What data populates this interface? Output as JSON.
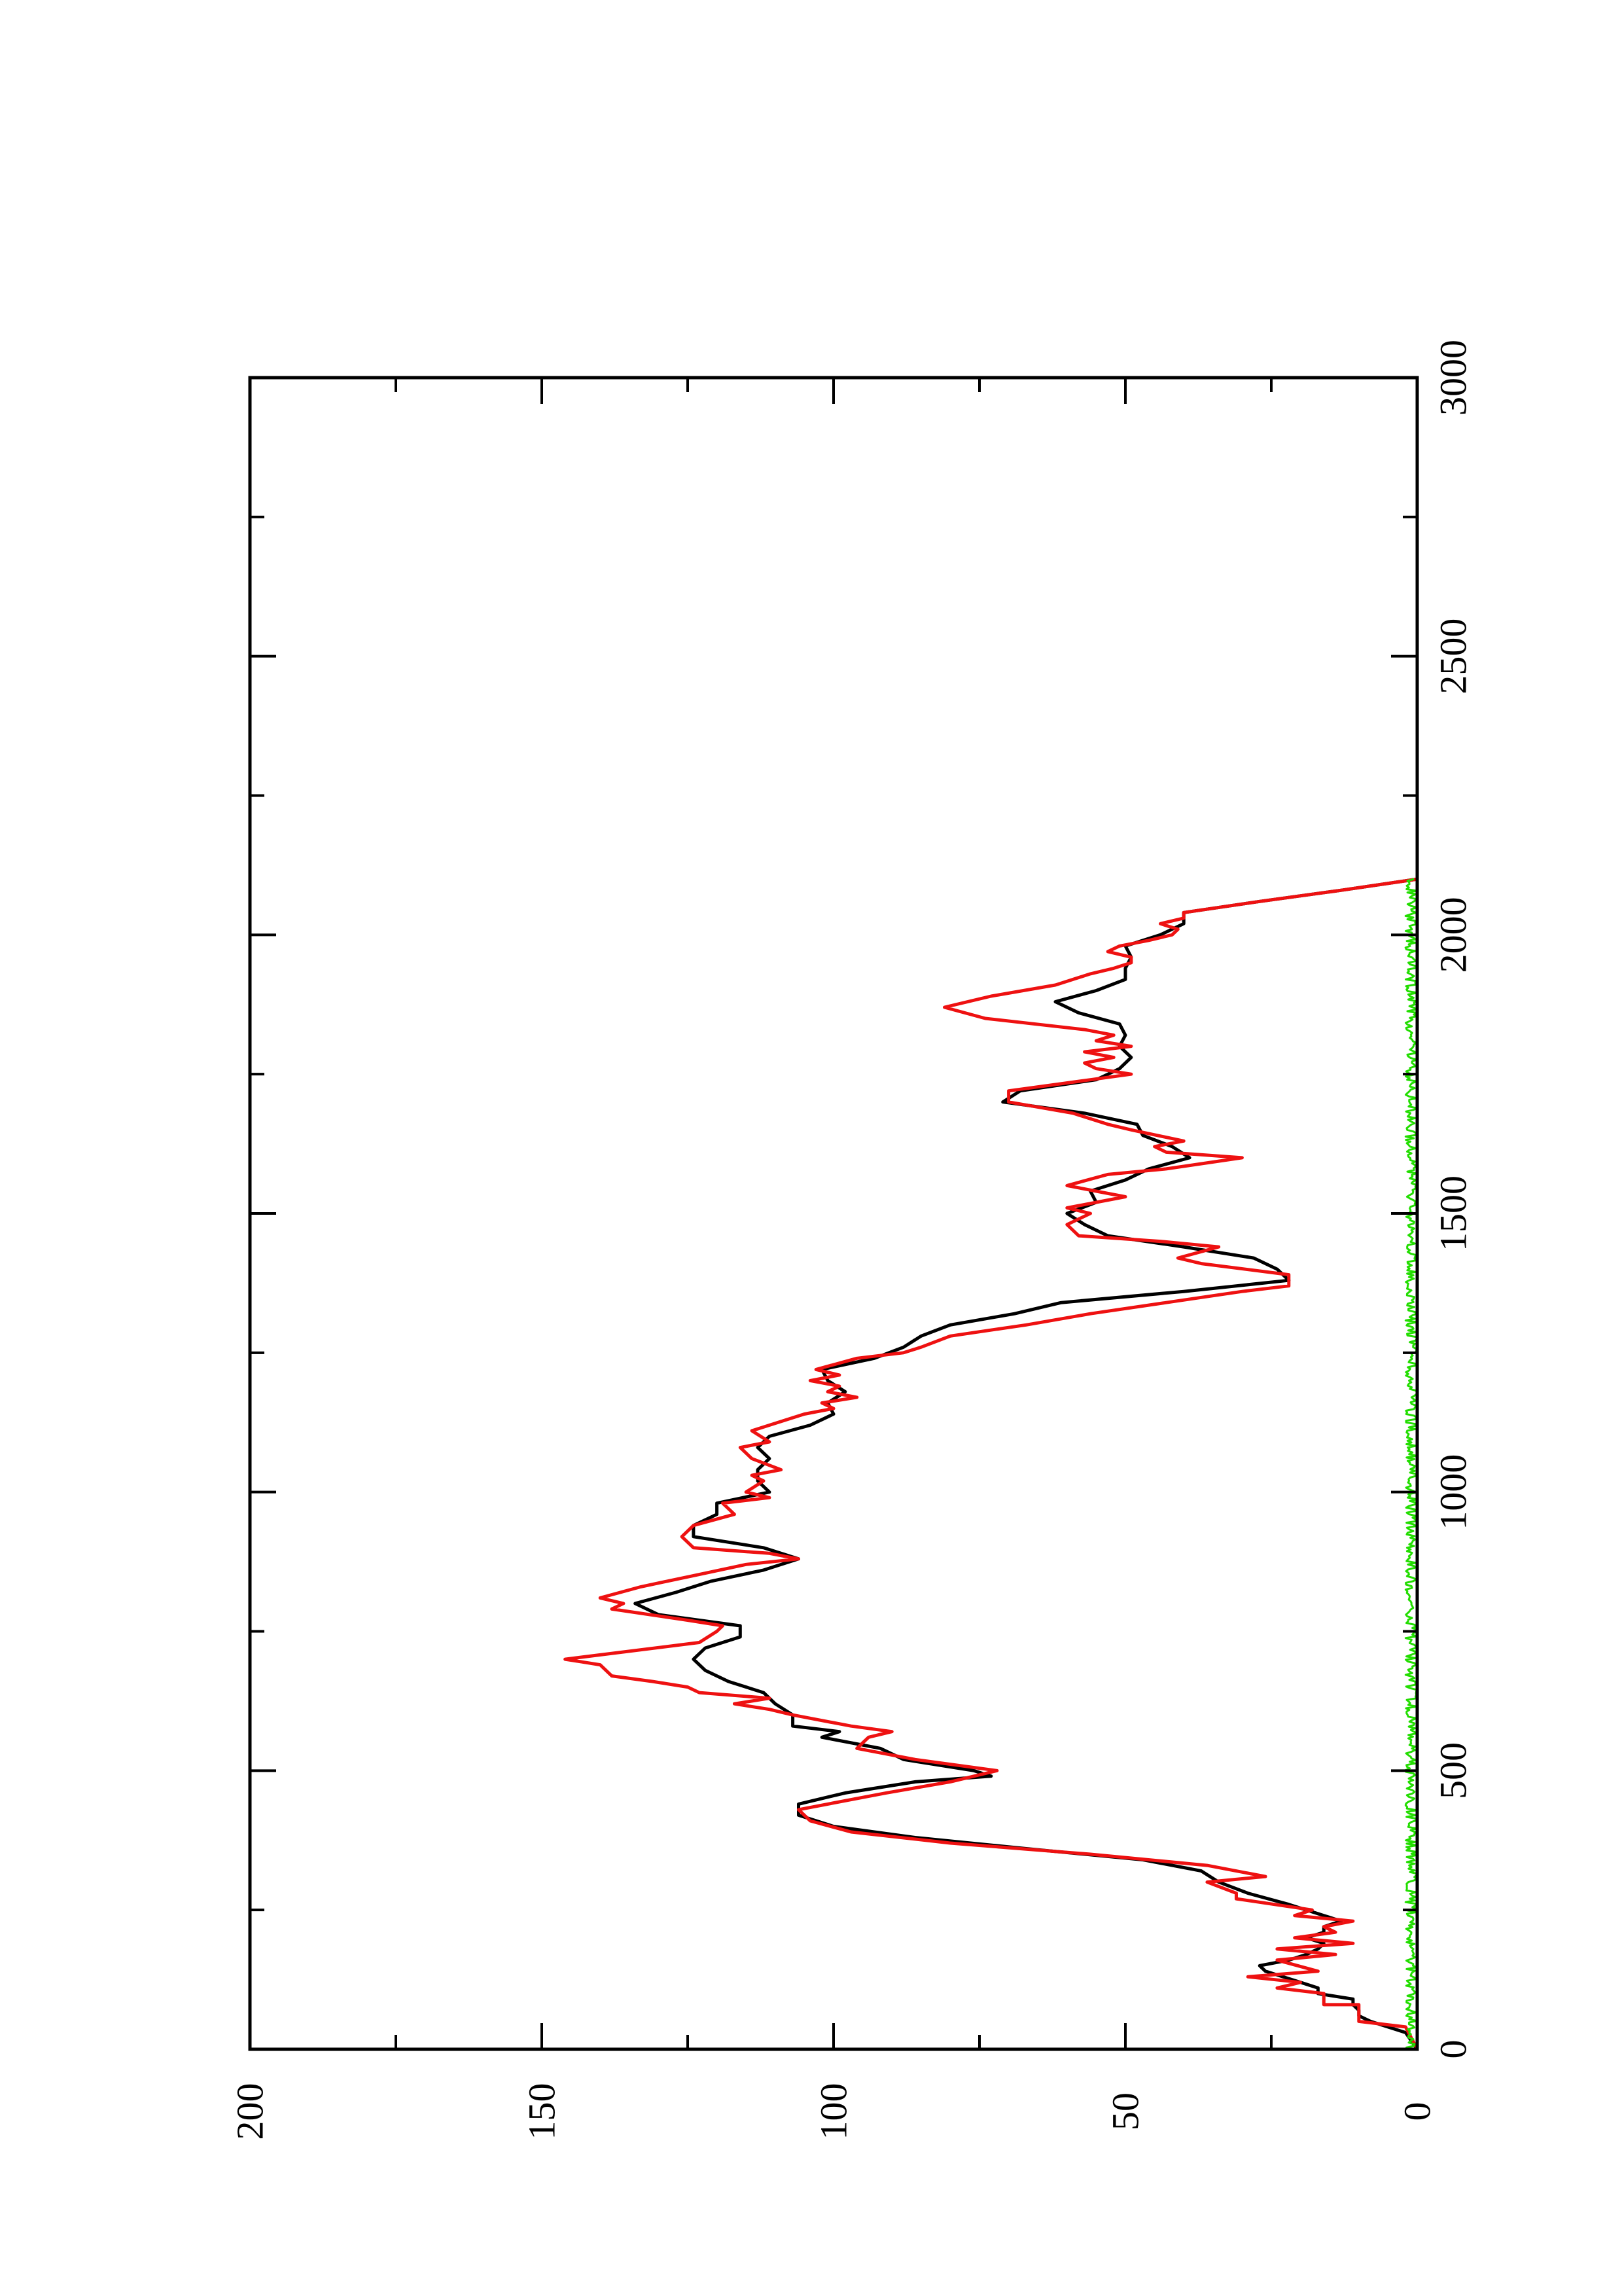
{
  "chart_data": {
    "type": "line",
    "orientation": "rotated 90 degrees counter-clockwise",
    "title": "",
    "xlabel": "",
    "ylabel": "",
    "xlim": [
      0,
      3000
    ],
    "ylim": [
      0,
      200
    ],
    "grid": false,
    "legend": "none",
    "x_ticks": [
      "0",
      "500",
      "1000",
      "1500",
      "2000",
      "2500",
      "3000"
    ],
    "y_ticks": [
      "0",
      "50",
      "100",
      "150",
      "200"
    ],
    "series": [
      {
        "color": "#000000",
        "points": [
          [
            0,
            0
          ],
          [
            30,
            2
          ],
          [
            50,
            8
          ],
          [
            60,
            10
          ],
          [
            70,
            10
          ],
          [
            80,
            11
          ],
          [
            90,
            11
          ],
          [
            100,
            17
          ],
          [
            110,
            17
          ],
          [
            120,
            20
          ],
          [
            130,
            23
          ],
          [
            140,
            26
          ],
          [
            150,
            27
          ],
          [
            160,
            22
          ],
          [
            170,
            19
          ],
          [
            180,
            17
          ],
          [
            190,
            16
          ],
          [
            200,
            19
          ],
          [
            210,
            16
          ],
          [
            220,
            16
          ],
          [
            230,
            13
          ],
          [
            240,
            16
          ],
          [
            260,
            22
          ],
          [
            280,
            29
          ],
          [
            300,
            34
          ],
          [
            320,
            37
          ],
          [
            340,
            47
          ],
          [
            360,
            67
          ],
          [
            380,
            86
          ],
          [
            400,
            100
          ],
          [
            420,
            106
          ],
          [
            440,
            106
          ],
          [
            460,
            98
          ],
          [
            480,
            86
          ],
          [
            490,
            73
          ],
          [
            500,
            76
          ],
          [
            520,
            88
          ],
          [
            540,
            92
          ],
          [
            560,
            102
          ],
          [
            570,
            99
          ],
          [
            580,
            107
          ],
          [
            600,
            107
          ],
          [
            620,
            110
          ],
          [
            640,
            112
          ],
          [
            660,
            118
          ],
          [
            680,
            122
          ],
          [
            700,
            124
          ],
          [
            720,
            122
          ],
          [
            740,
            116
          ],
          [
            760,
            116
          ],
          [
            780,
            130
          ],
          [
            800,
            134
          ],
          [
            820,
            127
          ],
          [
            840,
            121
          ],
          [
            860,
            112
          ],
          [
            880,
            106
          ],
          [
            900,
            112
          ],
          [
            920,
            124
          ],
          [
            940,
            124
          ],
          [
            960,
            120
          ],
          [
            980,
            120
          ],
          [
            1000,
            111
          ],
          [
            1020,
            113
          ],
          [
            1040,
            113
          ],
          [
            1060,
            111
          ],
          [
            1080,
            113
          ],
          [
            1100,
            111
          ],
          [
            1120,
            104
          ],
          [
            1140,
            100
          ],
          [
            1160,
            101
          ],
          [
            1180,
            98
          ],
          [
            1200,
            101
          ],
          [
            1220,
            102
          ],
          [
            1240,
            93
          ],
          [
            1260,
            88
          ],
          [
            1280,
            85
          ],
          [
            1300,
            80
          ],
          [
            1320,
            69
          ],
          [
            1340,
            61
          ],
          [
            1360,
            40
          ],
          [
            1380,
            22
          ],
          [
            1400,
            24
          ],
          [
            1420,
            28
          ],
          [
            1440,
            40
          ],
          [
            1460,
            53
          ],
          [
            1480,
            57
          ],
          [
            1500,
            60
          ],
          [
            1520,
            55
          ],
          [
            1540,
            56
          ],
          [
            1560,
            50
          ],
          [
            1580,
            46
          ],
          [
            1600,
            39
          ],
          [
            1620,
            42
          ],
          [
            1640,
            47
          ],
          [
            1660,
            48
          ],
          [
            1680,
            57
          ],
          [
            1700,
            71
          ],
          [
            1720,
            68
          ],
          [
            1740,
            55
          ],
          [
            1760,
            51
          ],
          [
            1780,
            49
          ],
          [
            1800,
            51
          ],
          [
            1820,
            50
          ],
          [
            1840,
            51
          ],
          [
            1860,
            58
          ],
          [
            1880,
            62
          ],
          [
            1900,
            55
          ],
          [
            1920,
            50
          ],
          [
            1940,
            50
          ],
          [
            1960,
            49
          ],
          [
            1980,
            50
          ],
          [
            2000,
            44
          ],
          [
            2020,
            40
          ],
          [
            2040,
            40
          ],
          [
            2060,
            27
          ],
          [
            2080,
            13
          ],
          [
            2100,
            0
          ]
        ]
      },
      {
        "color": "#ee1111",
        "points": [
          [
            0,
            0
          ],
          [
            40,
            2
          ],
          [
            50,
            10
          ],
          [
            80,
            10
          ],
          [
            80,
            16
          ],
          [
            100,
            16
          ],
          [
            110,
            24
          ],
          [
            120,
            20
          ],
          [
            130,
            29
          ],
          [
            140,
            17
          ],
          [
            160,
            24
          ],
          [
            170,
            14
          ],
          [
            180,
            24
          ],
          [
            190,
            11
          ],
          [
            200,
            21
          ],
          [
            210,
            14
          ],
          [
            220,
            16
          ],
          [
            230,
            11
          ],
          [
            240,
            21
          ],
          [
            250,
            18
          ],
          [
            270,
            31
          ],
          [
            280,
            31
          ],
          [
            300,
            36
          ],
          [
            310,
            26
          ],
          [
            330,
            36
          ],
          [
            350,
            56
          ],
          [
            370,
            80
          ],
          [
            390,
            97
          ],
          [
            410,
            104
          ],
          [
            430,
            106
          ],
          [
            460,
            91
          ],
          [
            480,
            80
          ],
          [
            500,
            72
          ],
          [
            520,
            86
          ],
          [
            540,
            96
          ],
          [
            560,
            94
          ],
          [
            570,
            90
          ],
          [
            580,
            97
          ],
          [
            600,
            107
          ],
          [
            610,
            111
          ],
          [
            620,
            117
          ],
          [
            630,
            111
          ],
          [
            640,
            123
          ],
          [
            650,
            125
          ],
          [
            660,
            131
          ],
          [
            670,
            138
          ],
          [
            690,
            140
          ],
          [
            700,
            146
          ],
          [
            730,
            123
          ],
          [
            750,
            120
          ],
          [
            760,
            119
          ],
          [
            770,
            125
          ],
          [
            790,
            138
          ],
          [
            800,
            136
          ],
          [
            810,
            140
          ],
          [
            830,
            133
          ],
          [
            850,
            124
          ],
          [
            870,
            115
          ],
          [
            880,
            106
          ],
          [
            890,
            111
          ],
          [
            900,
            124
          ],
          [
            920,
            126
          ],
          [
            940,
            124
          ],
          [
            960,
            117
          ],
          [
            980,
            119
          ],
          [
            990,
            111
          ],
          [
            1000,
            115
          ],
          [
            1020,
            112
          ],
          [
            1030,
            114
          ],
          [
            1040,
            109
          ],
          [
            1060,
            114
          ],
          [
            1080,
            116
          ],
          [
            1090,
            111
          ],
          [
            1110,
            114
          ],
          [
            1130,
            108
          ],
          [
            1140,
            105
          ],
          [
            1150,
            100
          ],
          [
            1160,
            102
          ],
          [
            1170,
            96
          ],
          [
            1180,
            101
          ],
          [
            1190,
            99
          ],
          [
            1200,
            104
          ],
          [
            1210,
            99
          ],
          [
            1220,
            103
          ],
          [
            1240,
            96
          ],
          [
            1250,
            88
          ],
          [
            1260,
            85
          ],
          [
            1280,
            80
          ],
          [
            1300,
            67
          ],
          [
            1320,
            56
          ],
          [
            1340,
            43
          ],
          [
            1360,
            30
          ],
          [
            1370,
            22
          ],
          [
            1390,
            22
          ],
          [
            1410,
            37
          ],
          [
            1420,
            41
          ],
          [
            1440,
            34
          ],
          [
            1450,
            44
          ],
          [
            1460,
            58
          ],
          [
            1480,
            60
          ],
          [
            1500,
            56
          ],
          [
            1510,
            60
          ],
          [
            1530,
            50
          ],
          [
            1550,
            60
          ],
          [
            1570,
            53
          ],
          [
            1580,
            43
          ],
          [
            1600,
            30
          ],
          [
            1610,
            43
          ],
          [
            1620,
            45
          ],
          [
            1630,
            40
          ],
          [
            1650,
            49
          ],
          [
            1660,
            53
          ],
          [
            1680,
            59
          ],
          [
            1700,
            70
          ],
          [
            1720,
            70
          ],
          [
            1740,
            56
          ],
          [
            1750,
            49
          ],
          [
            1760,
            55
          ],
          [
            1770,
            57
          ],
          [
            1780,
            52
          ],
          [
            1790,
            57
          ],
          [
            1800,
            49
          ],
          [
            1810,
            55
          ],
          [
            1820,
            52
          ],
          [
            1830,
            57
          ],
          [
            1850,
            74
          ],
          [
            1870,
            81
          ],
          [
            1890,
            73
          ],
          [
            1910,
            62
          ],
          [
            1930,
            56
          ],
          [
            1940,
            52
          ],
          [
            1950,
            49
          ],
          [
            1960,
            49
          ],
          [
            1970,
            53
          ],
          [
            1980,
            51
          ],
          [
            1990,
            46
          ],
          [
            2000,
            42
          ],
          [
            2010,
            41
          ],
          [
            2020,
            44
          ],
          [
            2030,
            40
          ],
          [
            2040,
            40
          ],
          [
            2060,
            27
          ],
          [
            2080,
            13
          ],
          [
            2100,
            0
          ]
        ]
      },
      {
        "color": "#22dd00",
        "noise_amplitude": 2,
        "points": [
          [
            0,
            0
          ],
          [
            2100,
            0
          ]
        ]
      }
    ]
  }
}
